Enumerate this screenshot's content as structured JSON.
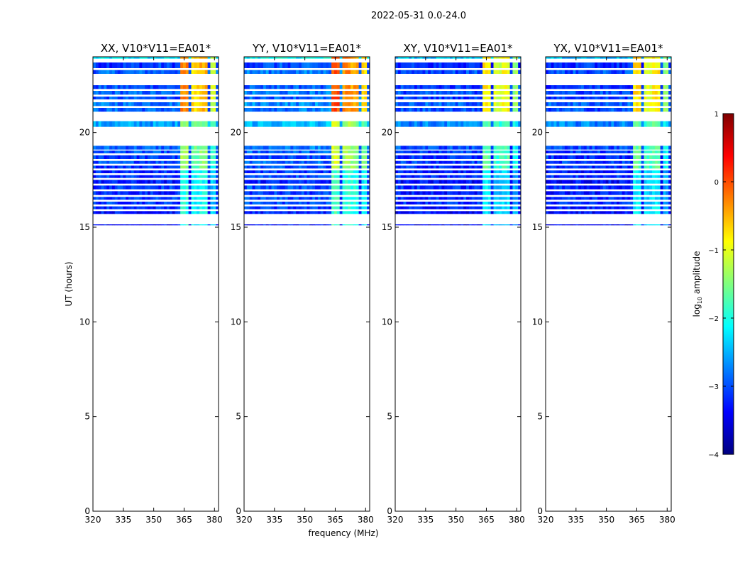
{
  "figure": {
    "suptitle": "2022-05-31 0.0-24.0",
    "xlabel": "frequency (MHz)",
    "ylabel": "UT (hours)"
  },
  "colorbar": {
    "label_prefix": "log",
    "label_sub": "10",
    "label_suffix": " amplitude",
    "range": [
      -4,
      1
    ],
    "ticks": [
      -4,
      -3,
      -2,
      -1,
      0,
      1
    ],
    "tick_labels": [
      "−4",
      "−3",
      "−2",
      "−1",
      "0",
      "1"
    ],
    "colormap": "jet",
    "colors": [
      "#00007f",
      "#0000ff",
      "#007fff",
      "#00ffff",
      "#7fff7f",
      "#ffff00",
      "#ff7f00",
      "#ff0000",
      "#7f0000"
    ]
  },
  "chart_data": [
    {
      "type": "heatmap",
      "title": "XX, V10*V11=EA01*",
      "xlabel": "",
      "ylabel": "UT (hours)",
      "xlim": [
        320,
        382
      ],
      "ylim": [
        0,
        24
      ],
      "xticks": [
        320,
        335,
        350,
        365,
        380
      ],
      "yticks": [
        0,
        5,
        10,
        15,
        20
      ],
      "hot_cols": [
        [
          363,
          367,
          0.74
        ],
        [
          368,
          372,
          0.66
        ],
        [
          373,
          377,
          0.7
        ],
        [
          378,
          380,
          0.58
        ]
      ],
      "bright": 1.0
    },
    {
      "type": "heatmap",
      "title": "YY, V10*V11=EA01*",
      "xlabel": "frequency (MHz)",
      "ylabel": "",
      "xlim": [
        320,
        382
      ],
      "ylim": [
        0,
        24
      ],
      "xticks": [
        320,
        335,
        350,
        365,
        380
      ],
      "yticks": [
        0,
        5,
        10,
        15,
        20
      ],
      "hot_cols": [
        [
          363,
          367,
          0.8
        ],
        [
          368,
          372,
          0.74
        ],
        [
          373,
          377,
          0.72
        ],
        [
          378,
          380,
          0.66
        ]
      ],
      "bright": 1.1
    },
    {
      "type": "heatmap",
      "title": "XY, V10*V11=EA01*",
      "xlabel": "",
      "ylabel": "",
      "xlim": [
        320,
        382
      ],
      "ylim": [
        0,
        24
      ],
      "xticks": [
        320,
        335,
        350,
        365,
        380
      ],
      "yticks": [
        0,
        5,
        10,
        15,
        20
      ],
      "hot_cols": [
        [
          363,
          367,
          0.64
        ],
        [
          368,
          372,
          0.58
        ],
        [
          373,
          377,
          0.62
        ],
        [
          378,
          380,
          0.52
        ]
      ],
      "bright": 0.9
    },
    {
      "type": "heatmap",
      "title": "YX, V10*V11=EA01*",
      "xlabel": "",
      "ylabel": "",
      "xlim": [
        320,
        382
      ],
      "ylim": [
        0,
        24
      ],
      "xticks": [
        320,
        335,
        350,
        365,
        380
      ],
      "yticks": [
        0,
        5,
        10,
        15,
        20
      ],
      "hot_cols": [
        [
          363,
          367,
          0.66
        ],
        [
          368,
          372,
          0.6
        ],
        [
          373,
          377,
          0.64
        ],
        [
          378,
          380,
          0.52
        ]
      ],
      "bright": 0.9
    }
  ],
  "data_rows_ut": [
    [
      23.9,
      24.0,
      0.35
    ],
    [
      23.4,
      23.7,
      0.18
    ],
    [
      23.1,
      23.3,
      0.22
    ],
    [
      22.3,
      22.5,
      0.2
    ],
    [
      22.0,
      22.2,
      0.22
    ],
    [
      21.75,
      21.9,
      0.2
    ],
    [
      21.4,
      21.6,
      0.24
    ],
    [
      21.1,
      21.3,
      0.22
    ],
    [
      20.3,
      20.6,
      0.28
    ],
    [
      19.1,
      19.3,
      0.22
    ],
    [
      18.9,
      19.05,
      0.2
    ],
    [
      18.6,
      18.8,
      0.18
    ],
    [
      18.35,
      18.5,
      0.2
    ],
    [
      18.1,
      18.25,
      0.18
    ],
    [
      17.85,
      18.0,
      0.16
    ],
    [
      17.6,
      17.75,
      0.18
    ],
    [
      17.3,
      17.5,
      0.14
    ],
    [
      17.0,
      17.2,
      0.18
    ],
    [
      16.7,
      16.9,
      0.16
    ],
    [
      16.45,
      16.6,
      0.18
    ],
    [
      16.2,
      16.35,
      0.18
    ],
    [
      15.95,
      16.1,
      0.16
    ],
    [
      15.7,
      15.85,
      0.14
    ],
    [
      15.1,
      15.15,
      0.12
    ]
  ]
}
